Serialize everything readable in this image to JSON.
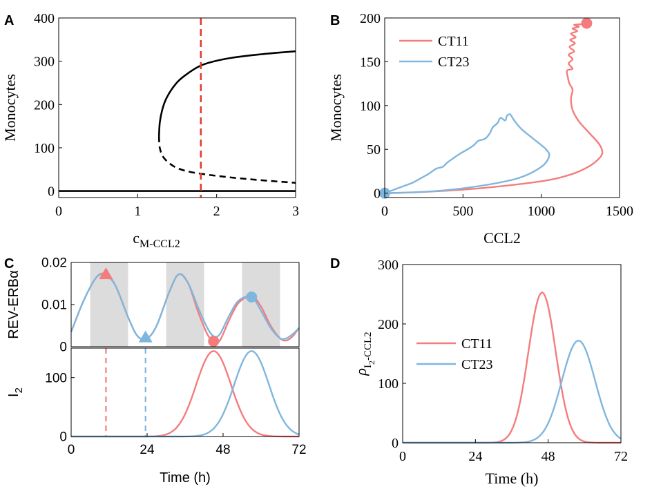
{
  "figure": {
    "panel_labels": [
      "A",
      "B",
      "C",
      "D"
    ]
  },
  "colors": {
    "ct11": "#f47c7c",
    "ct23": "#7fb6dd",
    "red_dash": "#e03c31",
    "shade": "#dcdcdc",
    "black": "#000000"
  },
  "chart_data": [
    {
      "panel": "A",
      "type": "line",
      "xlabel": "c",
      "xlabel_sub": "M-CCL2",
      "ylabel": "Monocytes",
      "xlim": [
        0,
        3
      ],
      "ylim": [
        -15,
        400
      ],
      "xticks": [
        0,
        1,
        2,
        3
      ],
      "yticks": [
        0,
        100,
        200,
        300,
        400
      ],
      "vline": {
        "x": 1.8,
        "style": "dashed",
        "color": "red_dash"
      },
      "series": [
        {
          "style": "solid",
          "color": "black",
          "points": [
            [
              0,
              0
            ],
            [
              3,
              0
            ]
          ]
        },
        {
          "style": "solid",
          "color": "black",
          "points": [
            [
              1.27,
              127
            ],
            [
              1.28,
              158
            ],
            [
              1.31,
              187
            ],
            [
              1.36,
              213
            ],
            [
              1.45,
              240
            ],
            [
              1.57,
              263
            ],
            [
              1.8,
              290
            ],
            [
              2.1,
              305
            ],
            [
              2.5,
              315
            ],
            [
              3.0,
              323
            ]
          ]
        },
        {
          "style": "dashed",
          "color": "black",
          "points": [
            [
              1.27,
              127
            ],
            [
              1.28,
              100
            ],
            [
              1.33,
              77
            ],
            [
              1.45,
              58
            ],
            [
              1.6,
              47
            ],
            [
              1.8,
              40
            ],
            [
              2.1,
              33
            ],
            [
              2.5,
              26
            ],
            [
              3.0,
              19
            ]
          ]
        }
      ]
    },
    {
      "panel": "B",
      "type": "line",
      "xlabel": "CCL2",
      "ylabel": "Monocytes",
      "xlim": [
        0,
        1500
      ],
      "ylim": [
        -5,
        200
      ],
      "xticks": [
        0,
        500,
        1000,
        1500
      ],
      "yticks": [
        0,
        50,
        100,
        150,
        200
      ],
      "legend": {
        "position": "top-left"
      },
      "series": [
        {
          "name": "CT11",
          "color": "ct11",
          "points": [
            [
              0,
              0
            ],
            [
              200,
              1
            ],
            [
              500,
              4
            ],
            [
              800,
              9
            ],
            [
              1050,
              15
            ],
            [
              1200,
              22
            ],
            [
              1300,
              30
            ],
            [
              1360,
              38
            ],
            [
              1390,
              46
            ],
            [
              1370,
              56
            ],
            [
              1300,
              70
            ],
            [
              1240,
              82
            ],
            [
              1200,
              95
            ],
            [
              1190,
              108
            ],
            [
              1200,
              118
            ],
            [
              1180,
              125
            ],
            [
              1170,
              132
            ],
            [
              1165,
              140
            ],
            [
              1200,
              142
            ],
            [
              1175,
              148
            ],
            [
              1200,
              153
            ],
            [
              1175,
              158
            ],
            [
              1210,
              162
            ],
            [
              1180,
              167
            ],
            [
              1215,
              171
            ],
            [
              1185,
              175
            ],
            [
              1220,
              178
            ],
            [
              1190,
              182
            ],
            [
              1230,
              185
            ],
            [
              1200,
              188
            ],
            [
              1240,
              190
            ],
            [
              1210,
              192
            ],
            [
              1260,
              193
            ],
            [
              1290,
              194
            ]
          ],
          "marker": {
            "shape": "circle",
            "at": [
              1290,
              194
            ]
          }
        },
        {
          "name": "CT23",
          "color": "ct23",
          "points": [
            [
              0,
              0
            ],
            [
              300,
              2
            ],
            [
              600,
              8
            ],
            [
              850,
              17
            ],
            [
              1000,
              30
            ],
            [
              1050,
              42
            ],
            [
              1030,
              50
            ],
            [
              950,
              62
            ],
            [
              880,
              72
            ],
            [
              840,
              80
            ],
            [
              820,
              85
            ],
            [
              800,
              90
            ],
            [
              780,
              88
            ],
            [
              770,
              83
            ],
            [
              740,
              86
            ],
            [
              720,
              80
            ],
            [
              690,
              75
            ],
            [
              670,
              68
            ],
            [
              640,
              62
            ],
            [
              600,
              60
            ],
            [
              570,
              55
            ],
            [
              530,
              50
            ],
            [
              480,
              45
            ],
            [
              440,
              40
            ],
            [
              400,
              35
            ],
            [
              370,
              30
            ],
            [
              330,
              28
            ],
            [
              280,
              22
            ],
            [
              220,
              16
            ],
            [
              180,
              12
            ],
            [
              120,
              8
            ],
            [
              60,
              4
            ],
            [
              0,
              0
            ]
          ],
          "marker": {
            "shape": "circle",
            "at": [
              0,
              0
            ]
          }
        }
      ]
    },
    {
      "panel": "C-top",
      "type": "line",
      "ylabel": "REV-ERBα",
      "xlim": [
        0,
        72
      ],
      "ylim": [
        0,
        0.02
      ],
      "yticks": [
        0,
        0.01,
        0.02
      ],
      "ytick_labels": [
        "0",
        "0.01",
        "0.02"
      ],
      "shaded_intervals": [
        [
          6,
          18
        ],
        [
          30,
          42
        ],
        [
          54,
          66
        ]
      ],
      "series": [
        {
          "name": "CT11",
          "color": "ct11",
          "points": [
            [
              0,
              0.0035
            ],
            [
              4,
              0.011
            ],
            [
              8,
              0.0165
            ],
            [
              11,
              0.0172
            ],
            [
              14,
              0.0145
            ],
            [
              18,
              0.007
            ],
            [
              21,
              0.0025
            ],
            [
              24,
              0.002
            ],
            [
              27,
              0.005
            ],
            [
              31,
              0.013
            ],
            [
              34,
              0.0172
            ],
            [
              37,
              0.015
            ],
            [
              40,
              0.0085
            ],
            [
              43,
              0.003
            ],
            [
              45,
              0.0013
            ],
            [
              47,
              0.0015
            ],
            [
              50,
              0.0065
            ],
            [
              53,
              0.0105
            ],
            [
              57,
              0.012
            ],
            [
              60,
              0.0095
            ],
            [
              63,
              0.005
            ],
            [
              66,
              0.002
            ],
            [
              68,
              0.0015
            ],
            [
              70,
              0.0025
            ],
            [
              72,
              0.0045
            ]
          ],
          "markers": [
            {
              "shape": "triangle",
              "at": [
                11,
                0.0172
              ]
            },
            {
              "shape": "circle",
              "at": [
                45,
                0.0013
              ]
            }
          ]
        },
        {
          "name": "CT23",
          "color": "ct23",
          "points": [
            [
              0,
              0.0035
            ],
            [
              4,
              0.011
            ],
            [
              8,
              0.0165
            ],
            [
              11,
              0.0168
            ],
            [
              14,
              0.0145
            ],
            [
              18,
              0.007
            ],
            [
              21,
              0.0025
            ],
            [
              24,
              0.002
            ],
            [
              27,
              0.005
            ],
            [
              31,
              0.013
            ],
            [
              34,
              0.0172
            ],
            [
              37,
              0.015
            ],
            [
              40,
              0.0095
            ],
            [
              43,
              0.0045
            ],
            [
              45,
              0.0025
            ],
            [
              47,
              0.003
            ],
            [
              50,
              0.0075
            ],
            [
              53,
              0.011
            ],
            [
              57,
              0.0118
            ],
            [
              60,
              0.0085
            ],
            [
              63,
              0.0045
            ],
            [
              66,
              0.002
            ],
            [
              68,
              0.002
            ],
            [
              70,
              0.003
            ],
            [
              72,
              0.0045
            ]
          ],
          "markers": [
            {
              "shape": "triangle",
              "at": [
                23.5,
                0.0022
              ]
            },
            {
              "shape": "circle",
              "at": [
                57,
                0.0118
              ]
            }
          ]
        }
      ]
    },
    {
      "panel": "C-bottom",
      "type": "line",
      "xlabel": "Time (h)",
      "ylabel": "I",
      "ylabel_sub": "2",
      "xlim": [
        0,
        72
      ],
      "ylim": [
        0,
        150
      ],
      "xticks": [
        0,
        24,
        48,
        72
      ],
      "yticks": [
        0,
        100
      ],
      "vlines": [
        {
          "x": 11,
          "color": "ct11",
          "style": "dashed"
        },
        {
          "x": 23.5,
          "color": "ct23",
          "style": "dashed"
        }
      ],
      "series": [
        {
          "name": "CT11",
          "color": "ct11",
          "peak_x": 45,
          "peak_y": 145,
          "width": 5.5
        },
        {
          "name": "CT23",
          "color": "ct23",
          "peak_x": 57,
          "peak_y": 145,
          "width": 5.5
        }
      ]
    },
    {
      "panel": "D",
      "type": "line",
      "xlabel": "Time (h)",
      "ylabel": "ρ",
      "ylabel_sub": "I",
      "ylabel_subsub": "2",
      "ylabel_tail": "-CCL2",
      "xlim": [
        0,
        72
      ],
      "ylim": [
        0,
        300
      ],
      "xticks": [
        0,
        24,
        48,
        72
      ],
      "yticks": [
        0,
        100,
        200,
        300
      ],
      "legend": {
        "position": "center-left"
      },
      "series": [
        {
          "name": "CT11",
          "color": "ct11",
          "peak_x": 46,
          "peak_y": 253,
          "width": 4.5
        },
        {
          "name": "CT23",
          "color": "ct23",
          "peak_x": 58,
          "peak_y": 172,
          "width": 5.5
        }
      ]
    }
  ]
}
